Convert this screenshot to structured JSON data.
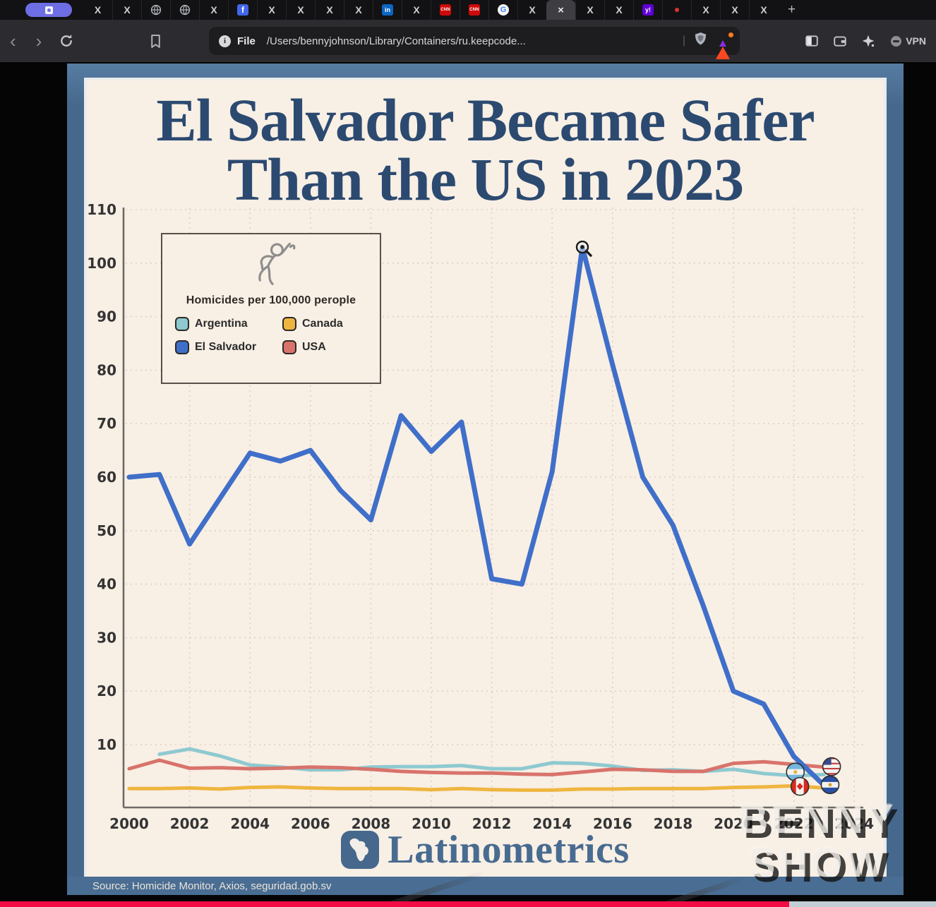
{
  "browser": {
    "tabs": [
      "x",
      "x",
      "globe",
      "globe",
      "x",
      "facebook",
      "x",
      "x",
      "x",
      "x",
      "linkedin",
      "x",
      "cnn",
      "cnn",
      "google",
      "x",
      "x-active",
      "x",
      "x",
      "yahoo",
      "dot",
      "x",
      "x",
      "x"
    ],
    "new_tab_label": "+",
    "toolbar": {
      "file_label": "File",
      "address": "/Users/bennyjohnson/Library/Containers/ru.keepcode...",
      "vpn_label": "VPN"
    }
  },
  "chart_image": {
    "title_line1": "El Salvador Became Safer",
    "title_line2": "Than the US in 2023",
    "legend": {
      "heading": "Homicides per 100,000 perople",
      "entries": [
        {
          "label": "Argentina",
          "color": "#8ec9d0"
        },
        {
          "label": "Canada",
          "color": "#eeb63f"
        },
        {
          "label": "El Salvador",
          "color": "#3f6fc9"
        },
        {
          "label": "USA",
          "color": "#d8736b"
        }
      ]
    },
    "source": "Source:  Homicide Monitor, Axios, seguridad.gob.sv",
    "logo_text": "Latinometrics"
  },
  "watermark": {
    "line1": "BENNY",
    "line2": "SHOW"
  },
  "chart_data": {
    "type": "line",
    "title": "El Salvador Became Safer Than the US in 2023",
    "unit_label": "Homicides per 100,000 perople",
    "x": [
      2000,
      2001,
      2002,
      2003,
      2004,
      2005,
      2006,
      2007,
      2008,
      2009,
      2010,
      2011,
      2012,
      2013,
      2014,
      2015,
      2016,
      2017,
      2018,
      2019,
      2020,
      2021,
      2022,
      2023
    ],
    "series": [
      {
        "name": "Argentina",
        "color": "#8ec9d0",
        "width": 5,
        "values": [
          null,
          8.2,
          9.2,
          7.9,
          6.2,
          5.8,
          5.3,
          5.3,
          5.8,
          5.9,
          5.9,
          6.1,
          5.5,
          5.5,
          6.6,
          6.5,
          6.0,
          5.2,
          5.3,
          5.0,
          5.4,
          4.6,
          4.2,
          4.4
        ]
      },
      {
        "name": "USA",
        "color": "#d8736b",
        "width": 5,
        "values": [
          5.5,
          7.1,
          5.6,
          5.7,
          5.5,
          5.6,
          5.8,
          5.7,
          5.4,
          5.0,
          4.8,
          4.7,
          4.7,
          4.5,
          4.4,
          4.9,
          5.4,
          5.3,
          5.0,
          5.0,
          6.5,
          6.8,
          6.3,
          5.8
        ]
      },
      {
        "name": "Canada",
        "color": "#eeb63f",
        "width": 5,
        "values": [
          1.8,
          1.8,
          1.9,
          1.7,
          2.0,
          2.1,
          1.9,
          1.8,
          1.8,
          1.8,
          1.6,
          1.8,
          1.6,
          1.5,
          1.5,
          1.7,
          1.7,
          1.8,
          1.8,
          1.8,
          2.0,
          2.1,
          2.3,
          1.9
        ]
      },
      {
        "name": "El Salvador",
        "color": "#3f6fc9",
        "width": 7,
        "values": [
          60,
          60.5,
          47.5,
          56,
          64.5,
          63,
          65,
          57.5,
          52,
          71.5,
          64.8,
          70.3,
          41,
          40,
          61,
          103,
          81,
          60,
          51,
          36,
          20,
          17.6,
          7.8,
          2.4
        ]
      }
    ],
    "ylim": [
      0,
      110
    ],
    "yticks": [
      10,
      20,
      30,
      40,
      50,
      60,
      70,
      80,
      90,
      100,
      110
    ],
    "xticks": [
      2000,
      2002,
      2004,
      2006,
      2008,
      2010,
      2012,
      2014,
      2016,
      2018,
      2020,
      2022,
      2024
    ],
    "grid": "dashed",
    "legend_position": "top-left",
    "end_markers": [
      {
        "flag": "argentina",
        "year": 2022.05,
        "value": 4.9
      },
      {
        "flag": "canada",
        "year": 2022.2,
        "value": 2.2
      },
      {
        "flag": "usa",
        "year": 2023.25,
        "value": 5.9
      },
      {
        "flag": "el-salvador",
        "year": 2023.2,
        "value": 2.5
      }
    ],
    "annotation": {
      "type": "magnifier-cursor",
      "year": 2015,
      "value": 103
    }
  }
}
